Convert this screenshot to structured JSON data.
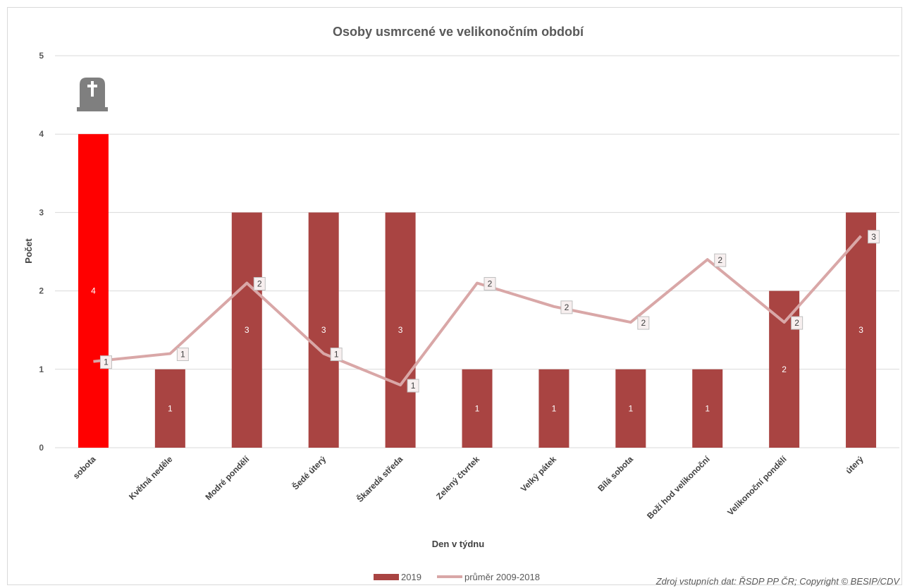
{
  "chart_data": {
    "type": "bar",
    "title": "Osoby usmrcené ve velikonočním období",
    "xlabel": "Den v týdnu",
    "ylabel": "Počet",
    "ylim": [
      0,
      5
    ],
    "yticks": [
      "0",
      "1",
      "2",
      "3",
      "4",
      "5"
    ],
    "grid": true,
    "legend_position": "bottom",
    "categories": [
      "sobota",
      "Květná neděle",
      "Modré pondělí",
      "Šedé úterý",
      "Škaredá středa",
      "Zelený čtvrtek",
      "Velký pátek",
      "Bílá sobota",
      "Boží hod velikonoční",
      "Velikonoční pondělí",
      "úterý"
    ],
    "series": [
      {
        "name": "2019",
        "type": "bar",
        "color": "#a94442",
        "highlight_color": "#ff0000",
        "highlight_index": 0,
        "values": [
          4,
          1,
          3,
          3,
          3,
          1,
          1,
          1,
          1,
          2,
          3
        ],
        "labels": [
          "4",
          "1",
          "3",
          "3",
          "3",
          "1",
          "1",
          "1",
          "1",
          "2",
          "3"
        ]
      },
      {
        "name": "průměr 2009-2018",
        "type": "line",
        "color": "#d9a7a7",
        "values": [
          1.1,
          1.2,
          2.1,
          1.2,
          0.8,
          2.1,
          1.8,
          1.6,
          2.4,
          1.6,
          2.7
        ],
        "labels": [
          "1",
          "1",
          "2",
          "1",
          "1",
          "2",
          "2",
          "2",
          "2",
          "2",
          "3"
        ]
      }
    ],
    "annotations": {
      "icon": "tombstone-cross-icon",
      "source": "Zdroj vstupních dat: ŘSDP PP ČR; Copyright © BESIP/CDV"
    }
  }
}
